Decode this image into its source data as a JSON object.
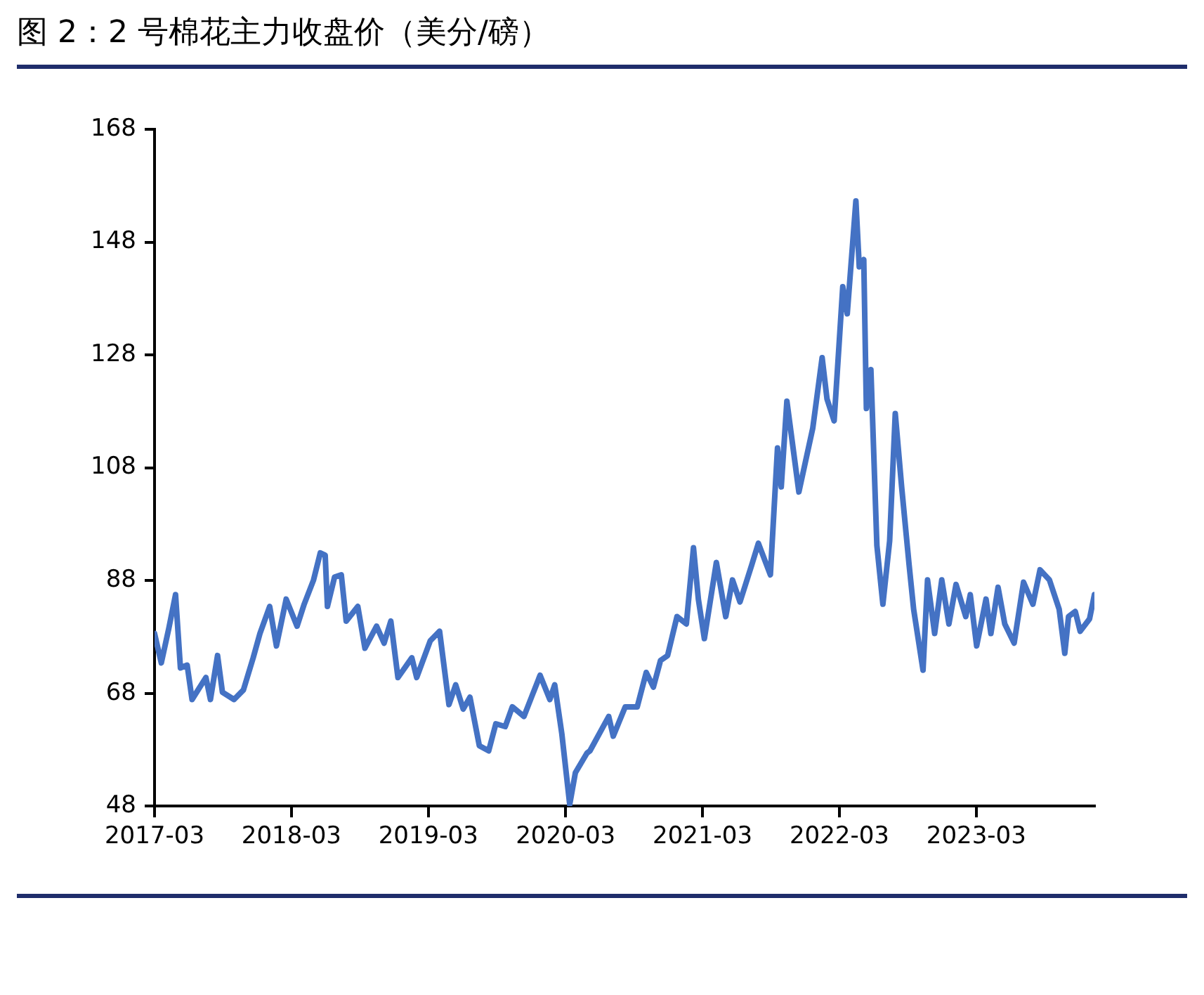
{
  "chart_data": {
    "type": "line",
    "title": "图 2：2 号棉花主力收盘价（美分/磅）",
    "x": [
      "2017-03-01",
      "2017-03-19",
      "2017-04-08",
      "2017-04-26",
      "2017-05-09",
      "2017-05-27",
      "2017-06-09",
      "2017-07-16",
      "2017-07-28",
      "2017-08-16",
      "2017-08-29",
      "2017-09-29",
      "2017-10-24",
      "2017-11-19",
      "2017-12-07",
      "2018-01-02",
      "2018-01-20",
      "2018-02-15",
      "2018-03-16",
      "2018-04-04",
      "2018-04-29",
      "2018-05-17",
      "2018-05-30",
      "2018-06-05",
      "2018-06-24",
      "2018-07-12",
      "2018-07-25",
      "2018-08-25",
      "2018-09-13",
      "2018-10-14",
      "2018-11-03",
      "2018-11-21",
      "2018-12-10",
      "2019-01-16",
      "2019-01-29",
      "2019-03-06",
      "2019-03-31",
      "2019-04-25",
      "2019-05-13",
      "2019-06-02",
      "2019-06-20",
      "2019-07-15",
      "2019-08-09",
      "2019-08-28",
      "2019-09-22",
      "2019-10-11",
      "2019-11-11",
      "2019-12-24",
      "2020-01-19",
      "2020-02-01",
      "2020-02-20",
      "2020-03-12",
      "2020-03-27",
      "2020-04-27",
      "2020-05-05",
      "2020-06-24",
      "2020-07-06",
      "2020-08-07",
      "2020-09-08",
      "2020-10-02",
      "2020-10-21",
      "2020-11-09",
      "2020-11-28",
      "2020-12-23",
      "2021-01-17",
      "2021-02-05",
      "2021-02-18",
      "2021-03-06",
      "2021-04-07",
      "2021-05-02",
      "2021-05-20",
      "2021-06-09",
      "2021-07-10",
      "2021-07-28",
      "2021-08-29",
      "2021-09-17",
      "2021-09-27",
      "2021-10-12",
      "2021-11-13",
      "2021-12-20",
      "2022-01-14",
      "2022-01-27",
      "2022-02-15",
      "2022-02-28",
      "2022-03-10",
      "2022-03-22",
      "2022-04-14",
      "2022-04-23",
      "2022-05-05",
      "2022-05-12",
      "2022-05-24",
      "2022-06-09",
      "2022-06-25",
      "2022-07-13",
      "2022-07-28",
      "2022-08-14",
      "2022-09-03",
      "2022-09-15",
      "2022-10-10",
      "2022-10-22",
      "2022-11-10",
      "2022-11-29",
      "2022-12-18",
      "2023-01-06",
      "2023-02-01",
      "2023-02-13",
      "2023-03-02",
      "2023-03-27",
      "2023-04-09",
      "2023-04-28",
      "2023-05-16",
      "2023-06-10",
      "2023-07-05",
      "2023-07-30",
      "2023-08-18",
      "2023-09-12",
      "2023-10-08",
      "2023-10-23",
      "2023-11-02",
      "2023-11-20",
      "2023-12-03",
      "2023-12-28",
      "2024-01-10"
    ],
    "series": [
      {
        "color": "#4472c4",
        "values": [
          78.6,
          73.4,
          79.5,
          85.5,
          72.5,
          73,
          66.9,
          70.8,
          66.9,
          74.7,
          68.2,
          66.9,
          68.6,
          74.3,
          78.6,
          83.4,
          76.4,
          84.7,
          79.9,
          83.8,
          88.1,
          92.9,
          92.5,
          83.4,
          88.6,
          89,
          80.8,
          83.4,
          76,
          79.9,
          76.9,
          80.8,
          70.8,
          74.3,
          70.8,
          77.3,
          79,
          66,
          69.5,
          65.2,
          67.3,
          58.7,
          57.8,
          62.6,
          62.1,
          65.6,
          63.9,
          71.2,
          66.9,
          69.5,
          60.8,
          48.3,
          53.9,
          57.4,
          57.8,
          63.9,
          60.4,
          65.6,
          65.6,
          71.7,
          69.1,
          73.8,
          74.7,
          81.6,
          80.3,
          93.8,
          84.7,
          77.7,
          91.2,
          81.6,
          88.1,
          84.2,
          90.7,
          94.6,
          89,
          111.5,
          104.6,
          119.8,
          103.7,
          115,
          127.5,
          120.2,
          116.3,
          129.7,
          140.1,
          135.3,
          155.3,
          143.6,
          144.9,
          118.5,
          125.4,
          94.2,
          83.8,
          95,
          117.6,
          104.6,
          90.7,
          82.9,
          72.1,
          88.1,
          78.6,
          88.1,
          80.3,
          87.3,
          81.6,
          85.5,
          76.4,
          84.7,
          78.6,
          86.8,
          80.3,
          76.9,
          87.7,
          83.8,
          89.9,
          88.1,
          82.9,
          75.1,
          81.6,
          82.5,
          79,
          81.2,
          85.5
        ]
      }
    ],
    "xlim": [
      "2017-03-01",
      "2024-01-10"
    ],
    "xticks": [
      {
        "value": "2017-03-01",
        "label": "2017-03"
      },
      {
        "value": "2018-03-01",
        "label": "2018-03"
      },
      {
        "value": "2019-03-01",
        "label": "2019-03"
      },
      {
        "value": "2020-03-01",
        "label": "2020-03"
      },
      {
        "value": "2021-03-01",
        "label": "2021-03"
      },
      {
        "value": "2022-03-01",
        "label": "2022-03"
      },
      {
        "value": "2023-03-01",
        "label": "2023-03"
      }
    ],
    "ylim": [
      48,
      168
    ],
    "yticks": [
      48,
      68,
      88,
      108,
      128,
      148,
      168
    ],
    "grid": false,
    "legend": false,
    "marker": "none",
    "line_style": "solid"
  }
}
